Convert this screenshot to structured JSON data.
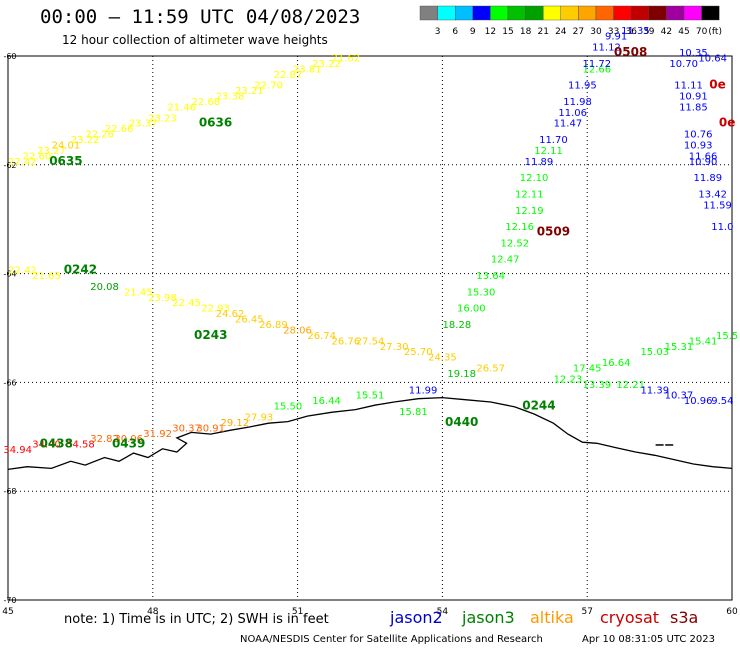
{
  "title": "00:00 – 11:59 UTC 04/08/2023",
  "subtitle": "12 hour collection of altimeter wave heights",
  "note": "note: 1) Time is in UTC; 2) SWH is in feet",
  "credit": "NOAA/NESDIS Center for Satellite Applications and Research",
  "timestamp": "Apr 10 08:31:05 UTC 2023",
  "legend": {
    "unit": "(ft)",
    "ticks": [
      "3",
      "6",
      "9",
      "12",
      "15",
      "18",
      "21",
      "24",
      "27",
      "30",
      "33",
      "36",
      "39",
      "42",
      "45",
      "70"
    ],
    "colors": [
      "#808080",
      "#00ffff",
      "#00bfff",
      "#0000ff",
      "#00ff00",
      "#00c000",
      "#00a000",
      "#ffff00",
      "#ffcc00",
      "#ffa500",
      "#ff6600",
      "#ff0000",
      "#c00000",
      "#800000",
      "#a000a0",
      "#ff00ff",
      "#000000"
    ]
  },
  "axes": {
    "lon_labels": [
      "45",
      "48",
      "51",
      "54",
      "57",
      "60"
    ],
    "lat_labels": [
      "-60",
      "-62",
      "-64",
      "-66",
      "-68",
      "-70"
    ]
  },
  "satellites": [
    {
      "name": "jason2",
      "color": "#0000c8"
    },
    {
      "name": "jason3",
      "color": "#008000"
    },
    {
      "name": "altika",
      "color": "#ff9900"
    },
    {
      "name": "cryosat",
      "color": "#c80000"
    },
    {
      "name": "s3a",
      "color": "#800000"
    }
  ],
  "pass_labels": [
    {
      "text": "0636",
      "lon": 49.3,
      "lat": -61.3,
      "color": "#008000"
    },
    {
      "text": "0635",
      "lon": 46.2,
      "lat": -62.0,
      "color": "#008000"
    },
    {
      "text": "0242",
      "lon": 46.5,
      "lat": -64.0,
      "color": "#008000"
    },
    {
      "text": "0243",
      "lon": 49.2,
      "lat": -65.2,
      "color": "#008000"
    },
    {
      "text": "0509",
      "lon": 56.3,
      "lat": -63.3,
      "color": "#800000"
    },
    {
      "text": "0508",
      "lon": 57.9,
      "lat": -60.0,
      "color": "#800000"
    },
    {
      "text": "0440",
      "lon": 54.4,
      "lat": -66.8,
      "color": "#008000"
    },
    {
      "text": "0244",
      "lon": 56.0,
      "lat": -66.5,
      "color": "#008000"
    },
    {
      "text": "0438",
      "lon": 46.0,
      "lat": -67.2,
      "color": "#008000"
    },
    {
      "text": "0439",
      "lon": 47.5,
      "lat": -67.2,
      "color": "#008000"
    },
    {
      "text": "0e",
      "lon": 59.7,
      "lat": -60.6,
      "color": "#c80000"
    },
    {
      "text": "0e",
      "lon": 59.9,
      "lat": -61.3,
      "color": "#c80000"
    }
  ],
  "tracks": [
    {
      "name": "jason3-0636",
      "values": [
        {
          "v": "22.42",
          "lon": 45.3,
          "lat": -62.0,
          "c": "#ffff00"
        },
        {
          "v": "22.60",
          "lon": 45.6,
          "lat": -61.9,
          "c": "#ffff00"
        },
        {
          "v": "23.27",
          "lon": 45.9,
          "lat": -61.8,
          "c": "#ffff00"
        },
        {
          "v": "24.01",
          "lon": 46.2,
          "lat": -61.7,
          "c": "#ffcc00"
        },
        {
          "v": "23.22",
          "lon": 46.6,
          "lat": -61.6,
          "c": "#ffff00"
        },
        {
          "v": "22.26",
          "lon": 46.9,
          "lat": -61.5,
          "c": "#ffff00"
        },
        {
          "v": "22.66",
          "lon": 47.3,
          "lat": -61.4,
          "c": "#ffff00"
        },
        {
          "v": "23.37",
          "lon": 47.8,
          "lat": -61.3,
          "c": "#ffff00"
        },
        {
          "v": "23.23",
          "lon": 48.2,
          "lat": -61.2,
          "c": "#ffff00"
        },
        {
          "v": "21.46",
          "lon": 48.6,
          "lat": -61.0,
          "c": "#ffff00"
        },
        {
          "v": "22.68",
          "lon": 49.1,
          "lat": -60.9,
          "c": "#ffff00"
        },
        {
          "v": "23.38",
          "lon": 49.6,
          "lat": -60.8,
          "c": "#ffff00"
        },
        {
          "v": "23.21",
          "lon": 50.0,
          "lat": -60.7,
          "c": "#ffff00"
        },
        {
          "v": "22.70",
          "lon": 50.4,
          "lat": -60.6,
          "c": "#ffff00"
        },
        {
          "v": "22.87",
          "lon": 50.8,
          "lat": -60.4,
          "c": "#ffff00"
        },
        {
          "v": "23.81",
          "lon": 51.2,
          "lat": -60.3,
          "c": "#ffff00"
        },
        {
          "v": "23.22",
          "lon": 51.6,
          "lat": -60.2,
          "c": "#ffff00"
        },
        {
          "v": "21.62",
          "lon": 52.0,
          "lat": -60.1,
          "c": "#ffff00"
        }
      ]
    },
    {
      "name": "jason3-0243",
      "values": [
        {
          "v": "22.42",
          "lon": 45.3,
          "lat": -64.0,
          "c": "#ffff00"
        },
        {
          "v": "21.65",
          "lon": 45.8,
          "lat": -64.1,
          "c": "#ffff00"
        },
        {
          "v": "20.08",
          "lon": 47.0,
          "lat": -64.3,
          "c": "#00a000"
        },
        {
          "v": "21.45",
          "lon": 47.7,
          "lat": -64.4,
          "c": "#ffff00"
        },
        {
          "v": "23.98",
          "lon": 48.2,
          "lat": -64.5,
          "c": "#ffff00"
        },
        {
          "v": "22.45",
          "lon": 48.7,
          "lat": -64.6,
          "c": "#ffff00"
        },
        {
          "v": "22.93",
          "lon": 49.3,
          "lat": -64.7,
          "c": "#ffff00"
        },
        {
          "v": "24.62",
          "lon": 49.6,
          "lat": -64.8,
          "c": "#ffcc00"
        },
        {
          "v": "26.45",
          "lon": 50.0,
          "lat": -64.9,
          "c": "#ffcc00"
        },
        {
          "v": "26.89",
          "lon": 50.5,
          "lat": -65.0,
          "c": "#ffcc00"
        },
        {
          "v": "28.06",
          "lon": 51.0,
          "lat": -65.1,
          "c": "#ffa500"
        },
        {
          "v": "26.74",
          "lon": 51.5,
          "lat": -65.2,
          "c": "#ffcc00"
        },
        {
          "v": "26.76",
          "lon": 52.0,
          "lat": -65.3,
          "c": "#ffcc00"
        },
        {
          "v": "27.54",
          "lon": 52.5,
          "lat": -65.3,
          "c": "#ffcc00"
        },
        {
          "v": "27.30",
          "lon": 53.0,
          "lat": -65.4,
          "c": "#ffcc00"
        },
        {
          "v": "25.70",
          "lon": 53.5,
          "lat": -65.5,
          "c": "#ffcc00"
        },
        {
          "v": "24.35",
          "lon": 54.0,
          "lat": -65.6,
          "c": "#ffcc00"
        },
        {
          "v": "26.57",
          "lon": 55.0,
          "lat": -65.8,
          "c": "#ffcc00"
        }
      ]
    },
    {
      "name": "jason3-0244",
      "values": [
        {
          "v": "15.81",
          "lon": 53.4,
          "lat": -66.6,
          "c": "#00ff00"
        },
        {
          "v": "16.44",
          "lon": 51.6,
          "lat": -66.4,
          "c": "#00ff00"
        },
        {
          "v": "15.50",
          "lon": 50.8,
          "lat": -66.5,
          "c": "#00ff00"
        },
        {
          "v": "15.51",
          "lon": 52.5,
          "lat": -66.3,
          "c": "#00ff00"
        },
        {
          "v": "17.45",
          "lon": 57.0,
          "lat": -65.8,
          "c": "#00ff00"
        },
        {
          "v": "16.64",
          "lon": 57.6,
          "lat": -65.7,
          "c": "#00ff00"
        },
        {
          "v": "15.03",
          "lon": 58.4,
          "lat": -65.5,
          "c": "#00ff00"
        },
        {
          "v": "15.31",
          "lon": 58.9,
          "lat": -65.4,
          "c": "#00ff00"
        },
        {
          "v": "15.41",
          "lon": 59.4,
          "lat": -65.3,
          "c": "#00ff00"
        },
        {
          "v": "15.5",
          "lon": 59.9,
          "lat": -65.2,
          "c": "#00ff00"
        }
      ]
    },
    {
      "name": "jason2-0440",
      "values": [
        {
          "v": "11.99",
          "lon": 53.6,
          "lat": -66.2,
          "c": "#0000ff"
        },
        {
          "v": "19.18",
          "lon": 54.4,
          "lat": -65.9,
          "c": "#00c000"
        },
        {
          "v": "18.28",
          "lon": 54.3,
          "lat": -65.0,
          "c": "#00c000"
        },
        {
          "v": "16.00",
          "lon": 54.6,
          "lat": -64.7,
          "c": "#00ff00"
        },
        {
          "v": "15.30",
          "lon": 54.8,
          "lat": -64.4,
          "c": "#00ff00"
        },
        {
          "v": "13.64",
          "lon": 55.0,
          "lat": -64.1,
          "c": "#00ff00"
        },
        {
          "v": "12.47",
          "lon": 55.3,
          "lat": -63.8,
          "c": "#00ff00"
        },
        {
          "v": "12.52",
          "lon": 55.5,
          "lat": -63.5,
          "c": "#00ff00"
        },
        {
          "v": "12.16",
          "lon": 55.6,
          "lat": -63.2,
          "c": "#00ff00"
        },
        {
          "v": "12.19",
          "lon": 55.8,
          "lat": -62.9,
          "c": "#00ff00"
        },
        {
          "v": "12.11",
          "lon": 55.8,
          "lat": -62.6,
          "c": "#00ff00"
        },
        {
          "v": "12.10",
          "lon": 55.9,
          "lat": -62.3,
          "c": "#00ff00"
        },
        {
          "v": "12.11",
          "lon": 56.2,
          "lat": -61.8,
          "c": "#00ff00"
        },
        {
          "v": "11.89",
          "lon": 56.0,
          "lat": -62.0,
          "c": "#0000ff"
        },
        {
          "v": "11.70",
          "lon": 56.3,
          "lat": -61.6,
          "c": "#0000ff"
        },
        {
          "v": "11.47",
          "lon": 56.6,
          "lat": -61.3,
          "c": "#0000ff"
        },
        {
          "v": "11.06",
          "lon": 56.7,
          "lat": -61.1,
          "c": "#0000ff"
        },
        {
          "v": "11.98",
          "lon": 56.8,
          "lat": -60.9,
          "c": "#0000ff"
        },
        {
          "v": "11.95",
          "lon": 56.9,
          "lat": -60.6,
          "c": "#0000ff"
        },
        {
          "v": "12.66",
          "lon": 57.2,
          "lat": -60.3,
          "c": "#00ff00"
        },
        {
          "v": "11.72",
          "lon": 57.2,
          "lat": -60.2,
          "c": "#0000ff"
        },
        {
          "v": "11.12",
          "lon": 57.4,
          "lat": -59.9,
          "c": "#0000ff"
        },
        {
          "v": "9.91",
          "lon": 57.6,
          "lat": -59.7,
          "c": "#0000ff"
        },
        {
          "v": "11.35",
          "lon": 58.0,
          "lat": -59.6,
          "c": "#0000ff"
        }
      ]
    },
    {
      "name": "jason2-0508",
      "values": [
        {
          "v": "10.35",
          "lon": 59.2,
          "lat": -60.0,
          "c": "#0000ff"
        },
        {
          "v": "10.70",
          "lon": 59.0,
          "lat": -60.2,
          "c": "#0000ff"
        },
        {
          "v": "10.64",
          "lon": 59.6,
          "lat": -60.1,
          "c": "#0000ff"
        },
        {
          "v": "11.11",
          "lon": 59.1,
          "lat": -60.6,
          "c": "#0000ff"
        },
        {
          "v": "10.91",
          "lon": 59.2,
          "lat": -60.8,
          "c": "#0000ff"
        },
        {
          "v": "11.85",
          "lon": 59.2,
          "lat": -61.0,
          "c": "#0000ff"
        },
        {
          "v": "10.76",
          "lon": 59.3,
          "lat": -61.5,
          "c": "#0000ff"
        },
        {
          "v": "10.93",
          "lon": 59.3,
          "lat": -61.7,
          "c": "#0000ff"
        },
        {
          "v": "11.66",
          "lon": 59.4,
          "lat": -61.9,
          "c": "#0000ff"
        },
        {
          "v": "10.90",
          "lon": 59.4,
          "lat": -62.0,
          "c": "#0000ff"
        },
        {
          "v": "11.89",
          "lon": 59.5,
          "lat": -62.3,
          "c": "#0000ff"
        },
        {
          "v": "13.42",
          "lon": 59.6,
          "lat": -62.6,
          "c": "#0000ff"
        },
        {
          "v": "11.59",
          "lon": 59.7,
          "lat": -62.8,
          "c": "#0000ff"
        },
        {
          "v": "11.0",
          "lon": 59.8,
          "lat": -63.2,
          "c": "#0000ff"
        }
      ]
    },
    {
      "name": "jason2-0244",
      "values": [
        {
          "v": "12.23",
          "lon": 56.6,
          "lat": -66.0,
          "c": "#00ff00"
        },
        {
          "v": "13.39",
          "lon": 57.2,
          "lat": -66.1,
          "c": "#00ff00"
        },
        {
          "v": "12.21",
          "lon": 57.9,
          "lat": -66.1,
          "c": "#00ff00"
        },
        {
          "v": "11.39",
          "lon": 58.4,
          "lat": -66.2,
          "c": "#0000ff"
        },
        {
          "v": "10.37",
          "lon": 58.9,
          "lat": -66.3,
          "c": "#0000ff"
        },
        {
          "v": "10.96",
          "lon": 59.3,
          "lat": -66.4,
          "c": "#0000ff"
        },
        {
          "v": "9.54",
          "lon": 59.8,
          "lat": -66.4,
          "c": "#0000ff"
        }
      ]
    },
    {
      "name": "cryosat-0438",
      "values": [
        {
          "v": "34.94",
          "lon": 45.2,
          "lat": -67.3,
          "c": "#ff0000"
        },
        {
          "v": "34.40",
          "lon": 45.8,
          "lat": -67.2,
          "c": "#ff0000"
        },
        {
          "v": "34.58",
          "lon": 46.5,
          "lat": -67.2,
          "c": "#ff0000"
        },
        {
          "v": "32.82",
          "lon": 47.0,
          "lat": -67.1,
          "c": "#ff6600"
        },
        {
          "v": "30.06",
          "lon": 47.5,
          "lat": -67.1,
          "c": "#ff6600"
        },
        {
          "v": "31.92",
          "lon": 48.1,
          "lat": -67.0,
          "c": "#ff6600"
        },
        {
          "v": "30.37",
          "lon": 48.7,
          "lat": -66.9,
          "c": "#ff6600"
        },
        {
          "v": "30.91",
          "lon": 49.2,
          "lat": -66.9,
          "c": "#ff6600"
        },
        {
          "v": "29.12",
          "lon": 49.7,
          "lat": -66.8,
          "c": "#ffa500"
        },
        {
          "v": "27.93",
          "lon": 50.2,
          "lat": -66.7,
          "c": "#ffcc00"
        }
      ]
    }
  ]
}
